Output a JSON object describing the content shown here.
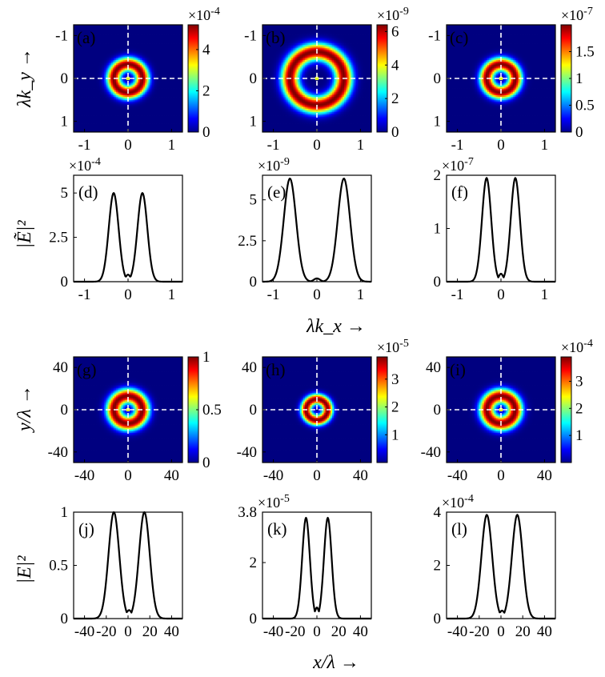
{
  "figure": {
    "row_axis_labels": {
      "a": "λk_y →",
      "b": "|Ẽ|²",
      "c": "λk_x →",
      "d": "y/λ →",
      "e": "|E|²",
      "f": "x/λ →"
    }
  },
  "chart_data": [
    {
      "id": "a",
      "type": "heatmap",
      "label": "(a)",
      "description_of": "ring intensity in k-space",
      "ring_radius": 0.33,
      "ring_width": 0.16,
      "x_range": [
        -1.25,
        1.25
      ],
      "y_range": [
        -1.25,
        1.25
      ],
      "y_reversed": true,
      "xticks": [
        -1,
        0,
        1
      ],
      "yticks": [
        -1,
        0,
        1
      ],
      "colorbar": {
        "min": 0,
        "max": 5.2,
        "ticks": [
          0,
          2,
          4
        ],
        "exponent": "×10^-4"
      }
    },
    {
      "id": "b",
      "type": "heatmap",
      "label": "(b)",
      "ring_radius": 0.62,
      "ring_width": 0.2,
      "x_range": [
        -1.25,
        1.25
      ],
      "y_range": [
        -1.25,
        1.25
      ],
      "y_reversed": true,
      "xticks": [
        -1,
        0,
        1
      ],
      "yticks": [
        -1,
        0,
        1
      ],
      "colorbar": {
        "min": 0,
        "max": 6.4,
        "ticks": [
          0,
          2,
          4,
          6
        ],
        "exponent": "×10^-9"
      }
    },
    {
      "id": "c",
      "type": "heatmap",
      "label": "(c)",
      "ring_radius": 0.33,
      "ring_width": 0.16,
      "x_range": [
        -1.25,
        1.25
      ],
      "y_range": [
        -1.25,
        1.25
      ],
      "y_reversed": true,
      "xticks": [
        -1,
        0,
        1
      ],
      "yticks": [
        -1,
        0,
        1
      ],
      "colorbar": {
        "min": 0,
        "max": 2.0,
        "ticks": [
          0,
          0.5,
          1,
          1.5
        ],
        "exponent": "×10^-7"
      }
    },
    {
      "id": "d",
      "type": "line",
      "label": "(d)",
      "x_range": [
        -1.25,
        1.25
      ],
      "ylim": [
        0,
        6
      ],
      "xticks": [
        -1,
        0,
        1
      ],
      "yticks": [
        0,
        2.5,
        5
      ],
      "exponent": "×10^-4",
      "peaks": [
        -0.33,
        0.33
      ],
      "peak_value": 5.0,
      "peak_width": 0.16,
      "min_value": 0.4
    },
    {
      "id": "e",
      "type": "line",
      "label": "(e)",
      "x_range": [
        -1.25,
        1.25
      ],
      "ylim": [
        0,
        6.5
      ],
      "xticks": [
        -1,
        0,
        1
      ],
      "yticks": [
        0,
        2.5,
        5
      ],
      "exponent": "×10^-9",
      "peaks": [
        -0.62,
        0.62
      ],
      "peak_value": 6.3,
      "peak_width": 0.2,
      "min_value": 0.2
    },
    {
      "id": "f",
      "type": "line",
      "label": "(f)",
      "x_range": [
        -1.25,
        1.25
      ],
      "ylim": [
        0,
        2
      ],
      "xticks": [
        -1,
        0,
        1
      ],
      "yticks": [
        0,
        1,
        2
      ],
      "exponent": "×10^-7",
      "peaks": [
        -0.33,
        0.33
      ],
      "peak_value": 1.95,
      "peak_width": 0.15,
      "min_value": 0.15
    },
    {
      "id": "g",
      "type": "heatmap",
      "label": "(g)",
      "ring_radius": 13,
      "ring_width": 7,
      "x_range": [
        -50,
        50
      ],
      "y_range": [
        -50,
        50
      ],
      "y_reversed": false,
      "xticks": [
        -40,
        0,
        40
      ],
      "yticks": [
        -40,
        0,
        40
      ],
      "colorbar": {
        "min": 0,
        "max": 1,
        "ticks": [
          0,
          0.5,
          1
        ],
        "exponent": ""
      }
    },
    {
      "id": "h",
      "type": "heatmap",
      "label": "(h)",
      "ring_radius": 10,
      "ring_width": 5,
      "x_range": [
        -50,
        50
      ],
      "y_range": [
        -50,
        50
      ],
      "y_reversed": false,
      "xticks": [
        -40,
        0,
        40
      ],
      "yticks": [
        -40,
        0,
        40
      ],
      "colorbar": {
        "min": 0,
        "max": 3.8,
        "ticks": [
          1,
          2,
          3
        ],
        "exponent": "×10^-5"
      }
    },
    {
      "id": "i",
      "type": "heatmap",
      "label": "(i)",
      "ring_radius": 13,
      "ring_width": 7,
      "x_range": [
        -50,
        50
      ],
      "y_range": [
        -50,
        50
      ],
      "y_reversed": false,
      "xticks": [
        -40,
        0,
        40
      ],
      "yticks": [
        -40,
        0,
        40
      ],
      "colorbar": {
        "min": 0,
        "max": 3.9,
        "ticks": [
          1,
          2,
          3
        ],
        "exponent": "×10^-4"
      }
    },
    {
      "id": "j",
      "type": "line",
      "label": "(j)",
      "x_range": [
        -50,
        50
      ],
      "ylim": [
        0,
        1
      ],
      "xticks": [
        -40,
        -20,
        0,
        20,
        40
      ],
      "yticks": [
        0,
        0.5,
        1
      ],
      "exponent": "",
      "peaks": [
        -13,
        15
      ],
      "peak_value": 1.0,
      "peak_width": 7,
      "min_value": 0.08
    },
    {
      "id": "k",
      "type": "line",
      "label": "(k)",
      "x_range": [
        -50,
        50
      ],
      "ylim": [
        0,
        3.8
      ],
      "xticks": [
        -40,
        -20,
        0,
        20,
        40
      ],
      "yticks": [
        0,
        2,
        3.8
      ],
      "exponent": "×10^-5",
      "peaks": [
        -10,
        10
      ],
      "peak_value": 3.6,
      "peak_width": 5,
      "min_value": 0.4
    },
    {
      "id": "l",
      "type": "line",
      "label": "(l)",
      "x_range": [
        -50,
        50
      ],
      "ylim": [
        0,
        4
      ],
      "xticks": [
        -40,
        -20,
        0,
        20,
        40
      ],
      "yticks": [
        0,
        2,
        4
      ],
      "exponent": "×10^-4",
      "peaks": [
        -13,
        15
      ],
      "peak_value": 3.9,
      "peak_width": 7,
      "min_value": 0.3
    }
  ]
}
